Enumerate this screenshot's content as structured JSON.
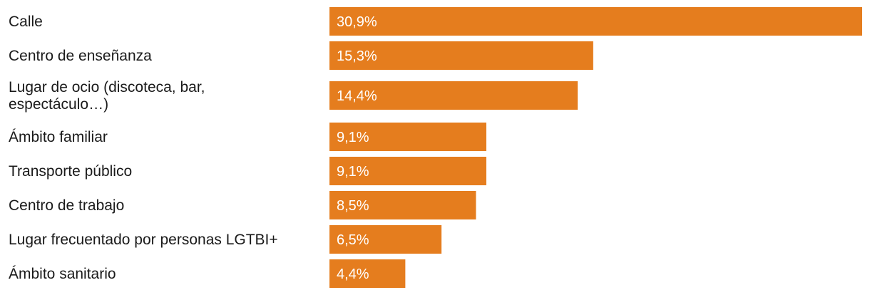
{
  "chart_data": {
    "type": "bar",
    "orientation": "horizontal",
    "categories": [
      [
        "Calle"
      ],
      [
        "Centro de enseñanza"
      ],
      [
        "Lugar de ocio (discoteca, bar,",
        "espectáculo…)"
      ],
      [
        "Ámbito familiar"
      ],
      [
        "Transporte público"
      ],
      [
        "Centro de trabajo"
      ],
      [
        "Lugar frecuentado por personas LGTBI+"
      ],
      [
        "Ámbito sanitario"
      ]
    ],
    "values": [
      30.9,
      15.3,
      14.4,
      9.1,
      9.1,
      8.5,
      6.5,
      4.4
    ],
    "value_labels": [
      "30,9%",
      "15,3%",
      "14,4%",
      "9,1%",
      "9,1%",
      "8,5%",
      "6,5%",
      "4,4%"
    ],
    "xlim": [
      0,
      30.9
    ],
    "bar_color": "#E57D1E",
    "title": "",
    "xlabel": "",
    "ylabel": ""
  }
}
